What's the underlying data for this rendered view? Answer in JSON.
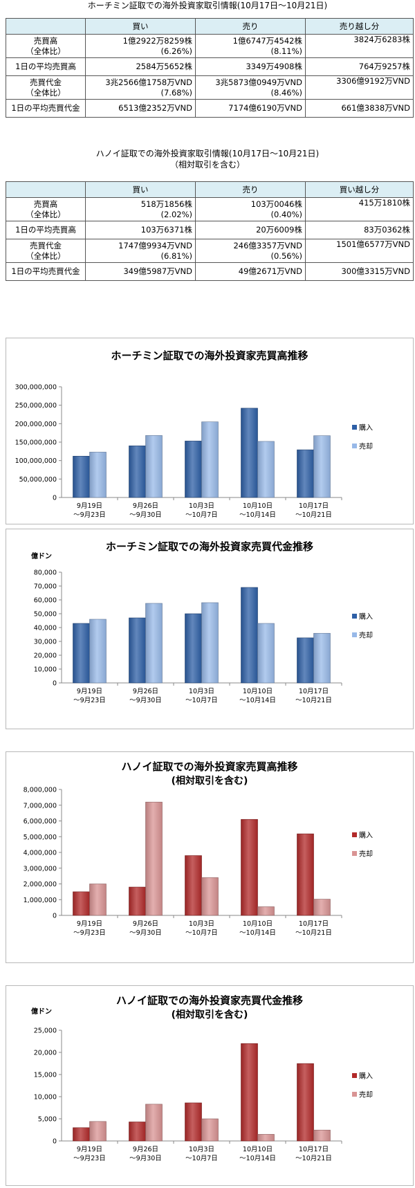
{
  "hcm_table": {
    "caption": "ホーチミン証取での海外投資家取引情報(10月17日〜10月21日)",
    "headers": [
      "",
      "買い",
      "売り",
      "売り越し分"
    ],
    "rows": [
      {
        "label1": "売買高",
        "label2": "（全体比）",
        "buy1": "1億2922万8259株",
        "buy2": "(6.26%)",
        "sell1": "1億6747万4542株",
        "sell2": "(8.11%)",
        "net": "3824万6283株"
      },
      {
        "label1": "1日の平均売買高",
        "label2": "",
        "buy1": "2584万5652株",
        "buy2": "",
        "sell1": "3349万4908株",
        "sell2": "",
        "net": "764万9257株"
      },
      {
        "label1": "売買代金",
        "label2": "（全体比）",
        "buy1": "3兆2566億1758万VND",
        "buy2": "(7.68%)",
        "sell1": "3兆5873億0949万VND",
        "sell2": "(8.46%)",
        "net": "3306億9192万VND"
      },
      {
        "label1": "1日の平均売買代金",
        "label2": "",
        "buy1": "6513億2352万VND",
        "buy2": "",
        "sell1": "7174億6190万VND",
        "sell2": "",
        "net": "661億3838万VND"
      }
    ]
  },
  "hn_table": {
    "caption1": "ハノイ証取での海外投資家取引情報(10月17日〜10月21日)",
    "caption2": "（相対取引を含む）",
    "headers": [
      "",
      "買い",
      "売り",
      "買い越し分"
    ],
    "rows": [
      {
        "label1": "売買高",
        "label2": "（全体比）",
        "buy1": "518万1856株",
        "buy2": "(2.02%)",
        "sell1": "103万0046株",
        "sell2": "(0.40%)",
        "net": "415万1810株"
      },
      {
        "label1": "1日の平均売買高",
        "label2": "",
        "buy1": "103万6371株",
        "buy2": "",
        "sell1": "20万6009株",
        "sell2": "",
        "net": "83万0362株"
      },
      {
        "label1": "売買代金",
        "label2": "（全体比）",
        "buy1": "1747億9934万VND",
        "buy2": "(6.81%)",
        "sell1": "246億3357万VND",
        "sell2": "(0.56%)",
        "net": "1501億6577万VND"
      },
      {
        "label1": "1日の平均売買代金",
        "label2": "",
        "buy1": "349億5987万VND",
        "buy2": "",
        "sell1": "49億2671万VND",
        "sell2": "",
        "net": "300億3315万VND"
      }
    ]
  },
  "colors": {
    "blue_buy": "#2e5fa6",
    "blue_sell": "#98b9e8",
    "red_buy": "#b22a2a",
    "red_sell": "#d99494",
    "header_bg": "#dbeef4"
  },
  "chart_data": [
    {
      "type": "bar",
      "title": "ホーチミン証取での海外投資家売買高推移",
      "subtitle": "",
      "unit_label": "",
      "categories": [
        [
          "9月19日",
          "〜9月23日"
        ],
        [
          "9月26日",
          "〜9月30日"
        ],
        [
          "10月3日",
          "〜10月7日"
        ],
        [
          "10月10日",
          "〜10月14日"
        ],
        [
          "10月17日",
          "〜10月21日"
        ]
      ],
      "series": [
        {
          "name": "購入",
          "values": [
            112000000,
            140000000,
            153000000,
            242000000,
            129228259
          ]
        },
        {
          "name": "売却",
          "values": [
            123000000,
            168000000,
            205000000,
            152000000,
            167474542
          ]
        }
      ],
      "ylim": [
        0,
        300000000
      ],
      "ticks": [
        0,
        50000000,
        100000000,
        150000000,
        200000000,
        250000000,
        300000000
      ],
      "tick_labels": [
        "0",
        "50,000,000",
        "100,000,000",
        "150,000,000",
        "200,000,000",
        "250,000,000",
        "300,000,000"
      ],
      "palette": "blue",
      "legend": "right",
      "grid": false
    },
    {
      "type": "bar",
      "title": "ホーチミン証取での海外投資家売買代金推移",
      "subtitle": "",
      "unit_label": "億ドン",
      "categories": [
        [
          "9月19日",
          "〜9月23日"
        ],
        [
          "9月26日",
          "〜9月30日"
        ],
        [
          "10月3日",
          "〜10月7日"
        ],
        [
          "10月10日",
          "〜10月14日"
        ],
        [
          "10月17日",
          "〜10月21日"
        ]
      ],
      "series": [
        {
          "name": "購入",
          "values": [
            43000,
            47000,
            50000,
            69000,
            32566
          ]
        },
        {
          "name": "売却",
          "values": [
            46000,
            57500,
            58000,
            43000,
            35873
          ]
        }
      ],
      "ylim": [
        0,
        80000
      ],
      "ticks": [
        0,
        10000,
        20000,
        30000,
        40000,
        50000,
        60000,
        70000,
        80000
      ],
      "tick_labels": [
        "0",
        "10,000",
        "20,000",
        "30,000",
        "40,000",
        "50,000",
        "60,000",
        "70,000",
        "80,000"
      ],
      "palette": "blue",
      "legend": "right",
      "grid": false
    },
    {
      "type": "bar",
      "title": "ハノイ証取での海外投資家売買高推移",
      "subtitle": "(相対取引を含む)",
      "unit_label": "",
      "categories": [
        [
          "9月19日",
          "〜9月23日"
        ],
        [
          "9月26日",
          "〜9月30日"
        ],
        [
          "10月3日",
          "〜10月7日"
        ],
        [
          "10月10日",
          "〜10月14日"
        ],
        [
          "10月17日",
          "〜10月21日"
        ]
      ],
      "series": [
        {
          "name": "購入",
          "values": [
            1500000,
            1800000,
            3800000,
            6100000,
            5181856
          ]
        },
        {
          "name": "売却",
          "values": [
            2000000,
            7200000,
            2400000,
            550000,
            1030046
          ]
        }
      ],
      "ylim": [
        0,
        8000000
      ],
      "ticks": [
        0,
        1000000,
        2000000,
        3000000,
        4000000,
        5000000,
        6000000,
        7000000,
        8000000
      ],
      "tick_labels": [
        "0",
        "1,000,000",
        "2,000,000",
        "3,000,000",
        "4,000,000",
        "5,000,000",
        "6,000,000",
        "7,000,000",
        "8,000,000"
      ],
      "palette": "red",
      "legend": "right",
      "grid": false
    },
    {
      "type": "bar",
      "title": "ハノイ証取での海外投資家売買代金推移",
      "subtitle": "(相対取引を含む)",
      "unit_label": "億ドン",
      "categories": [
        [
          "9月19日",
          "〜9月23日"
        ],
        [
          "9月26日",
          "〜9月30日"
        ],
        [
          "10月3日",
          "〜10月7日"
        ],
        [
          "10月10日",
          "〜10月14日"
        ],
        [
          "10月17日",
          "〜10月21日"
        ]
      ],
      "series": [
        {
          "name": "購入",
          "values": [
            3000,
            4300,
            8600,
            22000,
            17480
          ]
        },
        {
          "name": "売却",
          "values": [
            4400,
            8300,
            5000,
            1500,
            2463
          ]
        }
      ],
      "ylim": [
        0,
        25000
      ],
      "ticks": [
        0,
        5000,
        10000,
        15000,
        20000,
        25000
      ],
      "tick_labels": [
        "0",
        "5,000",
        "10,000",
        "15,000",
        "20,000",
        "25,000"
      ],
      "palette": "red",
      "legend": "right",
      "grid": false
    }
  ]
}
